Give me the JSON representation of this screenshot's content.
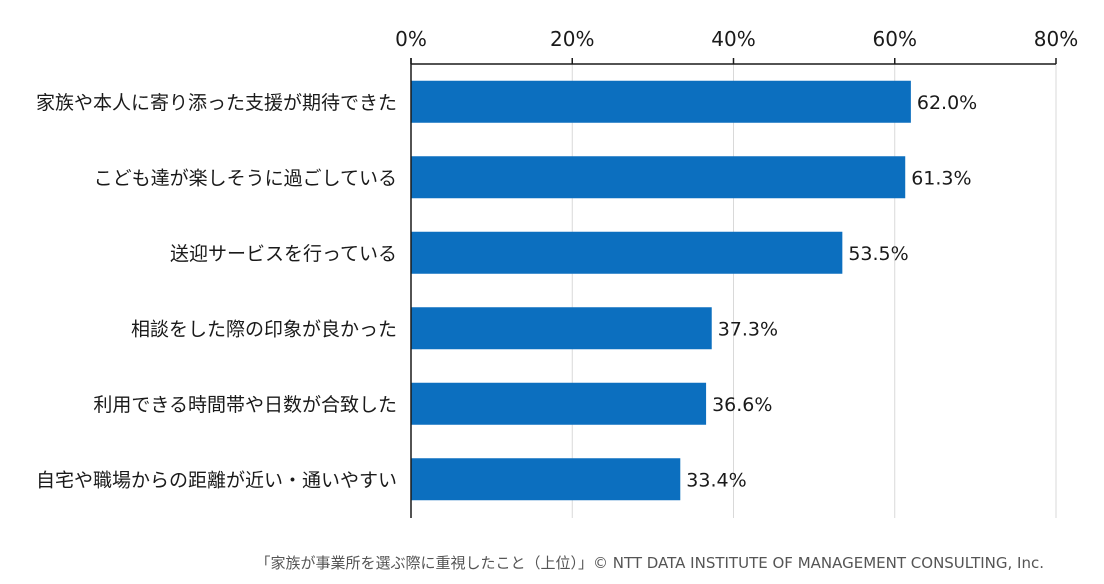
{
  "chart_data": {
    "type": "bar",
    "orientation": "horizontal",
    "categories": [
      "家族や本人に寄り添った支援が期待できた",
      "こども達が楽しそうに過ごしている",
      "送迎サービスを行っている",
      "相談をした際の印象が良かった",
      "利用できる時間帯や日数が合致した",
      "自宅や職場からの距離が近い・通いやすい"
    ],
    "values": [
      62.0,
      61.3,
      53.5,
      37.3,
      36.6,
      33.4
    ],
    "value_labels": [
      "62.0%",
      "61.3%",
      "53.5%",
      "37.3%",
      "36.6%",
      "33.4%"
    ],
    "xlim": [
      0,
      80
    ],
    "xticks": [
      0,
      20,
      40,
      60,
      80
    ],
    "xtick_labels": [
      "0%",
      "20%",
      "40%",
      "60%",
      "80%"
    ],
    "axis_position": "top",
    "grid": true,
    "bar_color": "#0c6fbf"
  },
  "caption": "「家族が事業所を選ぶ際に重視したこと（上位）」© NTT DATA INSTITUTE OF MANAGEMENT CONSULTING, Inc."
}
